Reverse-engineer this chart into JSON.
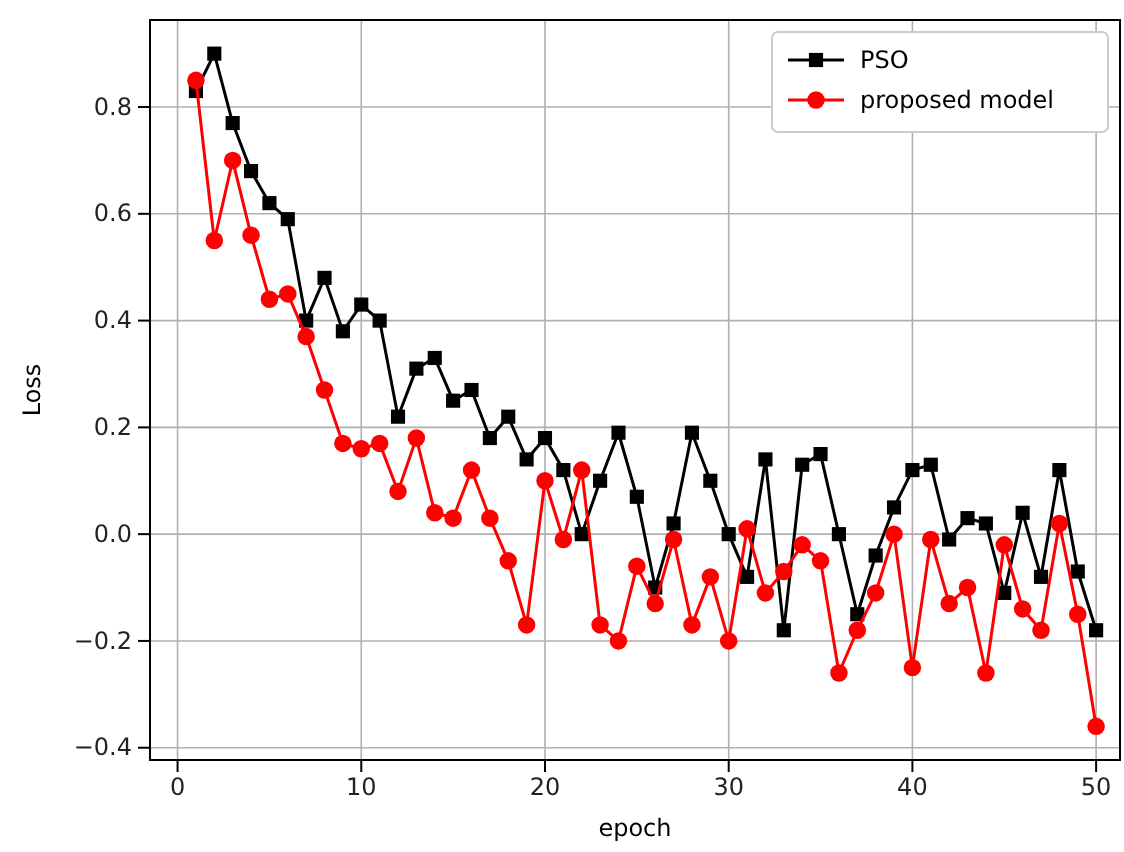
{
  "chart_data": {
    "type": "line",
    "xlabel": "epoch",
    "ylabel": "Loss",
    "x": [
      1,
      2,
      3,
      4,
      5,
      6,
      7,
      8,
      9,
      10,
      11,
      12,
      13,
      14,
      15,
      16,
      17,
      18,
      19,
      20,
      21,
      22,
      23,
      24,
      25,
      26,
      27,
      28,
      29,
      30,
      31,
      32,
      33,
      34,
      35,
      36,
      37,
      38,
      39,
      40,
      41,
      42,
      43,
      44,
      45,
      46,
      47,
      48,
      49,
      50
    ],
    "series": [
      {
        "name": "PSO",
        "color": "#000000",
        "marker": "square",
        "values": [
          0.83,
          0.9,
          0.77,
          0.68,
          0.62,
          0.59,
          0.4,
          0.48,
          0.38,
          0.43,
          0.4,
          0.22,
          0.31,
          0.33,
          0.25,
          0.27,
          0.18,
          0.22,
          0.14,
          0.18,
          0.12,
          0.0,
          0.1,
          0.19,
          0.07,
          -0.1,
          0.02,
          0.19,
          0.1,
          0.0,
          -0.08,
          0.14,
          -0.18,
          0.13,
          0.15,
          0.0,
          -0.15,
          -0.04,
          0.05,
          0.12,
          0.13,
          -0.01,
          0.03,
          0.02,
          -0.11,
          0.04,
          -0.08,
          0.12,
          -0.07,
          -0.18
        ]
      },
      {
        "name": "proposed model",
        "color": "#ff0000",
        "marker": "circle",
        "values": [
          0.85,
          0.55,
          0.7,
          0.56,
          0.44,
          0.45,
          0.37,
          0.27,
          0.17,
          0.16,
          0.17,
          0.08,
          0.18,
          0.04,
          0.03,
          0.12,
          0.03,
          -0.05,
          -0.17,
          0.1,
          -0.01,
          0.12,
          -0.17,
          -0.2,
          -0.06,
          -0.13,
          -0.01,
          -0.17,
          -0.08,
          -0.2,
          0.01,
          -0.11,
          -0.07,
          -0.02,
          -0.05,
          -0.26,
          -0.18,
          -0.11,
          0.0,
          -0.25,
          -0.01,
          -0.13,
          -0.1,
          -0.26,
          -0.02,
          -0.14,
          -0.18,
          0.02,
          -0.15,
          -0.36
        ]
      }
    ],
    "xlim": [
      -1.5,
      51.3
    ],
    "xticks": [
      0,
      10,
      20,
      30,
      40,
      50
    ],
    "ylim": [
      -0.423,
      0.963
    ],
    "yticks": [
      {
        "value": -0.4,
        "label": "−0.4"
      },
      {
        "value": -0.2,
        "label": "−0.2"
      },
      {
        "value": 0,
        "label": "0.0"
      },
      {
        "value": 0.2,
        "label": "0.2"
      },
      {
        "value": 0.4,
        "label": "0.4"
      },
      {
        "value": 0.6,
        "label": "0.6"
      },
      {
        "value": 0.8,
        "label": "0.8"
      }
    ],
    "grid": true,
    "legend": "top right",
    "line_style": "solid"
  }
}
